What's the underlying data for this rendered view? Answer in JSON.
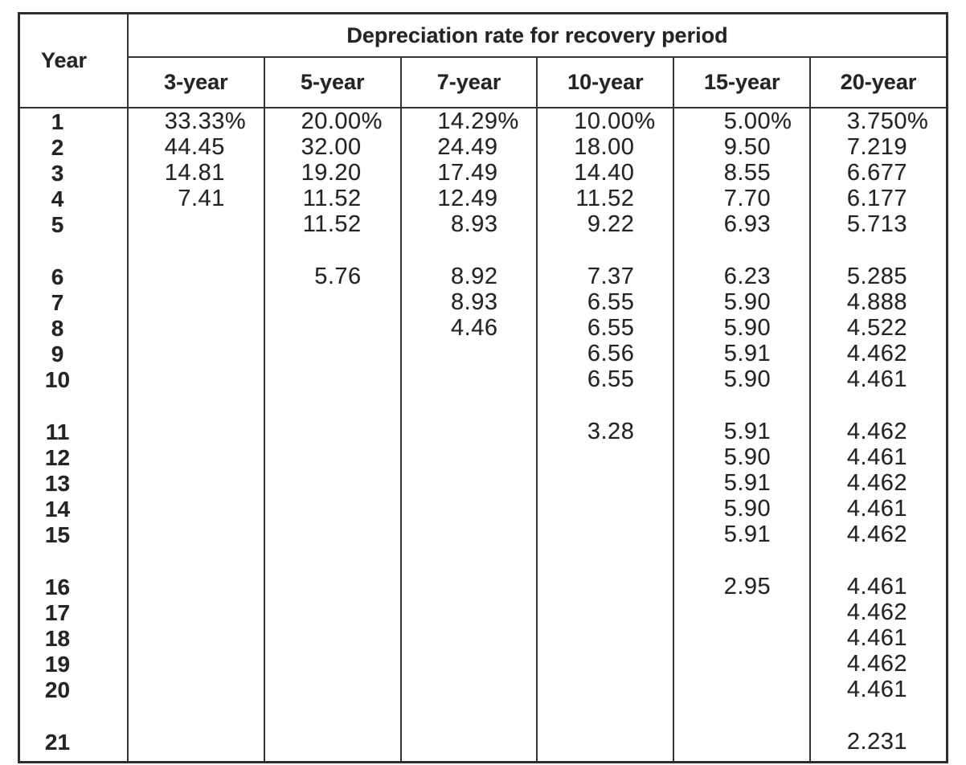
{
  "page": {
    "background": "#ffffff",
    "text_color": "#242424",
    "line_color": "#333333"
  },
  "table": {
    "group_header": "Depreciation rate for recovery period",
    "year_header": "Year"
  },
  "chart_data": {
    "type": "table",
    "group_header": "Depreciation rate for recovery period",
    "columns": [
      "Year",
      "3-year",
      "5-year",
      "7-year",
      "10-year",
      "15-year",
      "20-year"
    ],
    "rows": [
      [
        "1",
        "33.33%",
        "20.00%",
        "14.29%",
        "10.00%",
        "5.00%",
        "3.750%"
      ],
      [
        "2",
        "44.45",
        "32.00",
        "24.49",
        "18.00",
        "9.50",
        "7.219"
      ],
      [
        "3",
        "14.81",
        "19.20",
        "17.49",
        "14.40",
        "8.55",
        "6.677"
      ],
      [
        "4",
        "7.41",
        "11.52",
        "12.49",
        "11.52",
        "7.70",
        "6.177"
      ],
      [
        "5",
        "",
        "11.52",
        "8.93",
        "9.22",
        "6.93",
        "5.713"
      ],
      [
        "6",
        "",
        "5.76",
        "8.92",
        "7.37",
        "6.23",
        "5.285"
      ],
      [
        "7",
        "",
        "",
        "8.93",
        "6.55",
        "5.90",
        "4.888"
      ],
      [
        "8",
        "",
        "",
        "4.46",
        "6.55",
        "5.90",
        "4.522"
      ],
      [
        "9",
        "",
        "",
        "",
        "6.56",
        "5.91",
        "4.462"
      ],
      [
        "10",
        "",
        "",
        "",
        "6.55",
        "5.90",
        "4.461"
      ],
      [
        "11",
        "",
        "",
        "",
        "3.28",
        "5.91",
        "4.462"
      ],
      [
        "12",
        "",
        "",
        "",
        "",
        "5.90",
        "4.461"
      ],
      [
        "13",
        "",
        "",
        "",
        "",
        "5.91",
        "4.462"
      ],
      [
        "14",
        "",
        "",
        "",
        "",
        "5.90",
        "4.461"
      ],
      [
        "15",
        "",
        "",
        "",
        "",
        "5.91",
        "4.462"
      ],
      [
        "16",
        "",
        "",
        "",
        "",
        "2.95",
        "4.461"
      ],
      [
        "17",
        "",
        "",
        "",
        "",
        "",
        "4.462"
      ],
      [
        "18",
        "",
        "",
        "",
        "",
        "",
        "4.461"
      ],
      [
        "19",
        "",
        "",
        "",
        "",
        "",
        "4.462"
      ],
      [
        "20",
        "",
        "",
        "",
        "",
        "",
        "4.461"
      ],
      [
        "21",
        "",
        "",
        "",
        "",
        "",
        "2.231"
      ]
    ],
    "row_group_gaps_after": [
      "5",
      "10",
      "15",
      "20"
    ]
  }
}
